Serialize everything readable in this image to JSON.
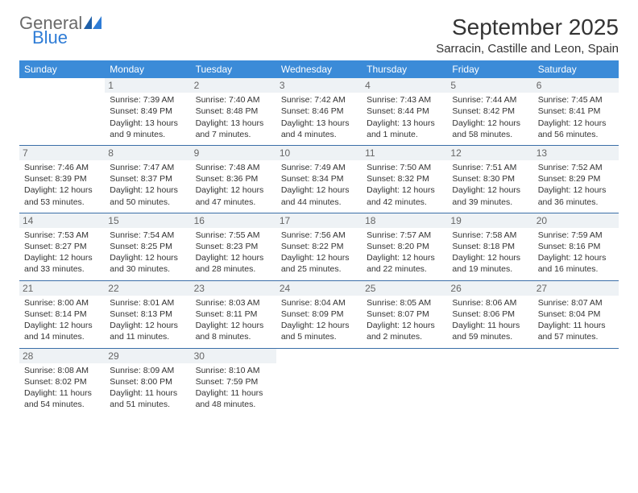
{
  "logo": {
    "top": "General",
    "bottom": "Blue"
  },
  "title": "September 2025",
  "location": "Sarracin, Castille and Leon, Spain",
  "header_bg": "#3b8bd8",
  "header_fg": "#ffffff",
  "week_border": "#3b6fa8",
  "daynum_bg": "#eef2f5",
  "daynum_fg": "#666666",
  "text_color": "#333333",
  "logo_blue": "#2e7cd6",
  "logo_gray": "#6a6a6a",
  "daynames": [
    "Sunday",
    "Monday",
    "Tuesday",
    "Wednesday",
    "Thursday",
    "Friday",
    "Saturday"
  ],
  "weeks": [
    [
      null,
      {
        "n": "1",
        "sr": "7:39 AM",
        "ss": "8:49 PM",
        "dl": "13 hours and 9 minutes."
      },
      {
        "n": "2",
        "sr": "7:40 AM",
        "ss": "8:48 PM",
        "dl": "13 hours and 7 minutes."
      },
      {
        "n": "3",
        "sr": "7:42 AM",
        "ss": "8:46 PM",
        "dl": "13 hours and 4 minutes."
      },
      {
        "n": "4",
        "sr": "7:43 AM",
        "ss": "8:44 PM",
        "dl": "13 hours and 1 minute."
      },
      {
        "n": "5",
        "sr": "7:44 AM",
        "ss": "8:42 PM",
        "dl": "12 hours and 58 minutes."
      },
      {
        "n": "6",
        "sr": "7:45 AM",
        "ss": "8:41 PM",
        "dl": "12 hours and 56 minutes."
      }
    ],
    [
      {
        "n": "7",
        "sr": "7:46 AM",
        "ss": "8:39 PM",
        "dl": "12 hours and 53 minutes."
      },
      {
        "n": "8",
        "sr": "7:47 AM",
        "ss": "8:37 PM",
        "dl": "12 hours and 50 minutes."
      },
      {
        "n": "9",
        "sr": "7:48 AM",
        "ss": "8:36 PM",
        "dl": "12 hours and 47 minutes."
      },
      {
        "n": "10",
        "sr": "7:49 AM",
        "ss": "8:34 PM",
        "dl": "12 hours and 44 minutes."
      },
      {
        "n": "11",
        "sr": "7:50 AM",
        "ss": "8:32 PM",
        "dl": "12 hours and 42 minutes."
      },
      {
        "n": "12",
        "sr": "7:51 AM",
        "ss": "8:30 PM",
        "dl": "12 hours and 39 minutes."
      },
      {
        "n": "13",
        "sr": "7:52 AM",
        "ss": "8:29 PM",
        "dl": "12 hours and 36 minutes."
      }
    ],
    [
      {
        "n": "14",
        "sr": "7:53 AM",
        "ss": "8:27 PM",
        "dl": "12 hours and 33 minutes."
      },
      {
        "n": "15",
        "sr": "7:54 AM",
        "ss": "8:25 PM",
        "dl": "12 hours and 30 minutes."
      },
      {
        "n": "16",
        "sr": "7:55 AM",
        "ss": "8:23 PM",
        "dl": "12 hours and 28 minutes."
      },
      {
        "n": "17",
        "sr": "7:56 AM",
        "ss": "8:22 PM",
        "dl": "12 hours and 25 minutes."
      },
      {
        "n": "18",
        "sr": "7:57 AM",
        "ss": "8:20 PM",
        "dl": "12 hours and 22 minutes."
      },
      {
        "n": "19",
        "sr": "7:58 AM",
        "ss": "8:18 PM",
        "dl": "12 hours and 19 minutes."
      },
      {
        "n": "20",
        "sr": "7:59 AM",
        "ss": "8:16 PM",
        "dl": "12 hours and 16 minutes."
      }
    ],
    [
      {
        "n": "21",
        "sr": "8:00 AM",
        "ss": "8:14 PM",
        "dl": "12 hours and 14 minutes."
      },
      {
        "n": "22",
        "sr": "8:01 AM",
        "ss": "8:13 PM",
        "dl": "12 hours and 11 minutes."
      },
      {
        "n": "23",
        "sr": "8:03 AM",
        "ss": "8:11 PM",
        "dl": "12 hours and 8 minutes."
      },
      {
        "n": "24",
        "sr": "8:04 AM",
        "ss": "8:09 PM",
        "dl": "12 hours and 5 minutes."
      },
      {
        "n": "25",
        "sr": "8:05 AM",
        "ss": "8:07 PM",
        "dl": "12 hours and 2 minutes."
      },
      {
        "n": "26",
        "sr": "8:06 AM",
        "ss": "8:06 PM",
        "dl": "11 hours and 59 minutes."
      },
      {
        "n": "27",
        "sr": "8:07 AM",
        "ss": "8:04 PM",
        "dl": "11 hours and 57 minutes."
      }
    ],
    [
      {
        "n": "28",
        "sr": "8:08 AM",
        "ss": "8:02 PM",
        "dl": "11 hours and 54 minutes."
      },
      {
        "n": "29",
        "sr": "8:09 AM",
        "ss": "8:00 PM",
        "dl": "11 hours and 51 minutes."
      },
      {
        "n": "30",
        "sr": "8:10 AM",
        "ss": "7:59 PM",
        "dl": "11 hours and 48 minutes."
      },
      null,
      null,
      null,
      null
    ]
  ],
  "labels": {
    "sunrise": "Sunrise: ",
    "sunset": "Sunset: ",
    "daylight": "Daylight: "
  }
}
